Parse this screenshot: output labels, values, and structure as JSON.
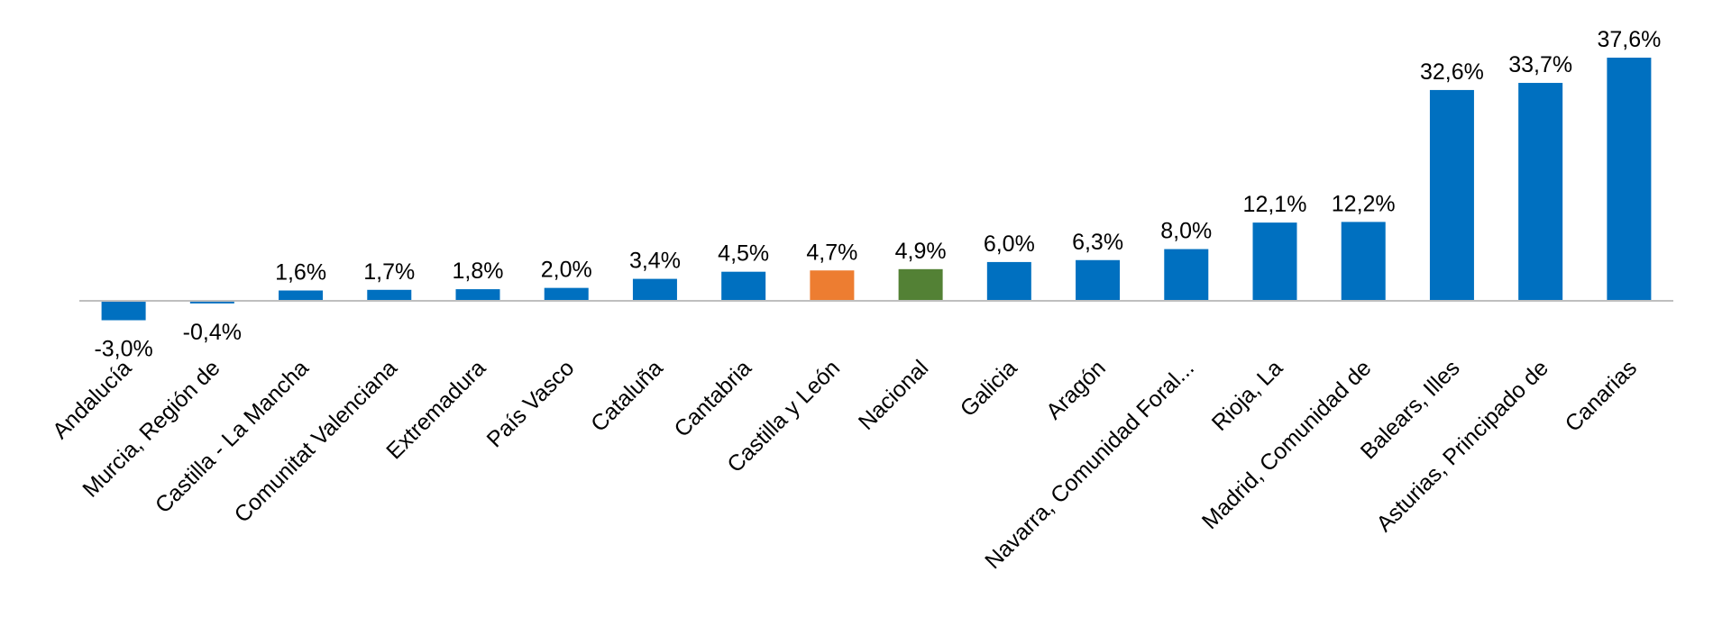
{
  "chart_data": {
    "type": "bar",
    "categories": [
      "Andalucía",
      "Murcia, Región de",
      "Castilla - La Mancha",
      "Comunitat Valenciana",
      "Extremadura",
      "País Vasco",
      "Cataluña",
      "Cantabria",
      "Castilla y León",
      "Nacional",
      "Galicia",
      "Aragón",
      "Navarra, Comunidad Foral...",
      "Rioja, La",
      "Madrid, Comunidad de",
      "Balears, Illes",
      "Asturias, Principado de",
      "Canarias"
    ],
    "values": [
      -3.0,
      -0.4,
      1.6,
      1.7,
      1.8,
      2.0,
      3.4,
      4.5,
      4.7,
      4.9,
      6.0,
      6.3,
      8.0,
      12.1,
      12.2,
      32.6,
      33.7,
      37.6
    ],
    "data_labels": [
      "-3,0%",
      "-0,4%",
      "1,6%",
      "1,7%",
      "1,8%",
      "2,0%",
      "3,4%",
      "4,5%",
      "4,7%",
      "4,9%",
      "6,0%",
      "6,3%",
      "8,0%",
      "12,1%",
      "12,2%",
      "32,6%",
      "33,7%",
      "37,6%"
    ],
    "colors": {
      "default": "#0070C0",
      "Castilla y León": "#ED7D31",
      "Nacional": "#538135"
    },
    "axis_color": "#BFBFBF",
    "grid": false,
    "legend": "none",
    "ylim": [
      -4,
      40
    ]
  }
}
